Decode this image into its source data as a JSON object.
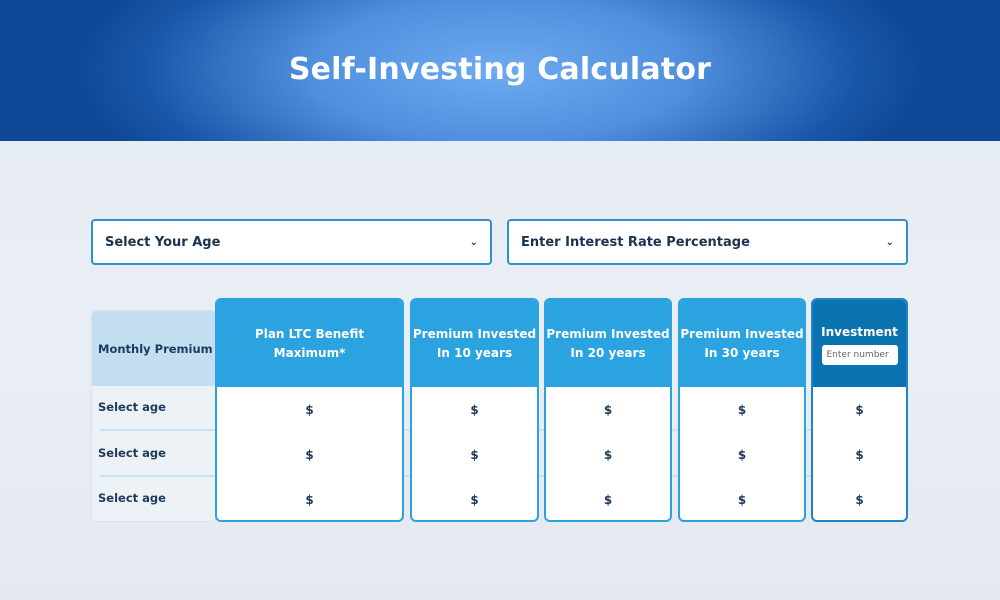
{
  "header": {
    "title": "Self-Investing Calculator"
  },
  "controls": {
    "age_select": "Select Your Age",
    "rate_select": "Enter Interest Rate Percentage"
  },
  "table": {
    "row_header": "Monthly Premium",
    "rows": [
      "Select age",
      "Select age",
      "Select age"
    ],
    "columns": [
      {
        "line1": "Plan LTC Benefit Maximum*",
        "line2": "",
        "cells": [
          "$",
          "$",
          "$"
        ]
      },
      {
        "line1": "Premium Invested",
        "line2": "In 10 years",
        "cells": [
          "$",
          "$",
          "$"
        ]
      },
      {
        "line1": "Premium Invested",
        "line2": "In 20 years",
        "cells": [
          "$",
          "$",
          "$"
        ]
      },
      {
        "line1": "Premium Invested",
        "line2": "In 30 years",
        "cells": [
          "$",
          "$",
          "$"
        ]
      },
      {
        "line1": "Investment",
        "line2": "",
        "cells": [
          "$",
          "$",
          "$"
        ]
      }
    ],
    "investment_placeholder": "Enter number"
  },
  "colors": {
    "header_dark": "#0f4897",
    "header_light": "#6daaf0",
    "column_blue": "#2ba3e1",
    "investment_blue": "#0b72b0"
  }
}
